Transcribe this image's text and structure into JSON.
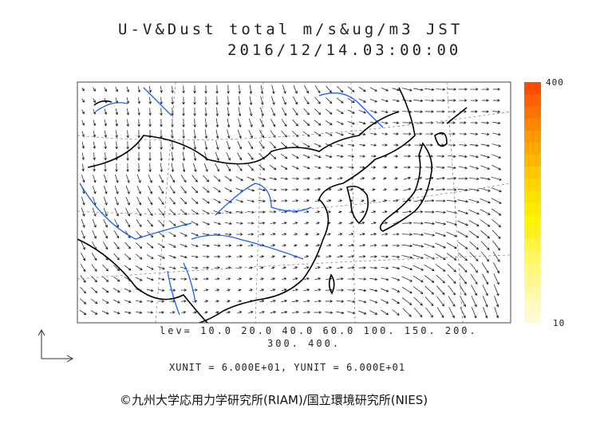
{
  "title": {
    "line1": "U-V&Dust total m/s&ug/m3 JST",
    "line2": "2016/12/14.03:00:00"
  },
  "colorbar": {
    "max_label": "400",
    "min_label": "10",
    "colors": [
      "#fffbd0",
      "#fffac0",
      "#fff9a8",
      "#fff890",
      "#fff878",
      "#fff760",
      "#fff540",
      "#ffef20",
      "#fff400",
      "#ffea00",
      "#ffe000",
      "#ffd400",
      "#ffc800",
      "#ffb800",
      "#ffa800",
      "#ff9a00",
      "#ff8800",
      "#ff7400",
      "#ff6000",
      "#ff4a00"
    ]
  },
  "contour_levels": {
    "line1": "lev= 10.0 20.0 40.0 60.0 100. 150. 200.",
    "line2": "300. 400."
  },
  "units": "XUNIT = 6.000E+01, YUNIT = 6.000E+01",
  "credit": "©九州大学応用力学研究所(RIAM)/国立環境研究所(NIES)",
  "colors": {
    "coastline": "#000000",
    "rivers": "#1a5cff",
    "vectors": "#000000"
  }
}
